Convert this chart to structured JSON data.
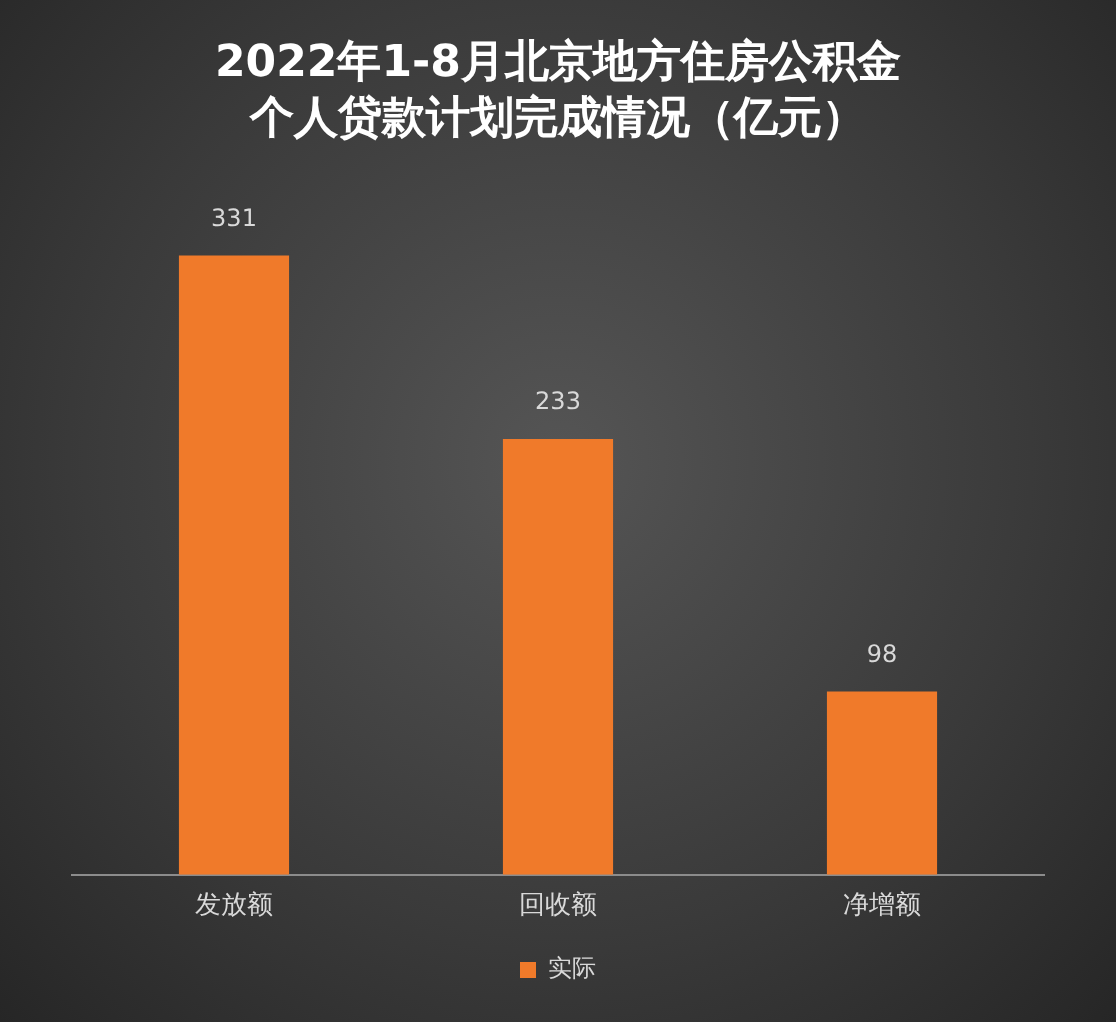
{
  "chart_data": {
    "type": "bar",
    "title": "2022年1-8月北京地方住房公积金个人贷款计划完成情况（亿元）",
    "categories": [
      "发放额",
      "回收额",
      "净增额"
    ],
    "series": [
      {
        "name": "实际",
        "color": "#f07a2a",
        "values": [
          331,
          233,
          98
        ]
      }
    ],
    "data_labels": true,
    "legend": "bottom",
    "grid": false,
    "tick_labels": "x"
  }
}
